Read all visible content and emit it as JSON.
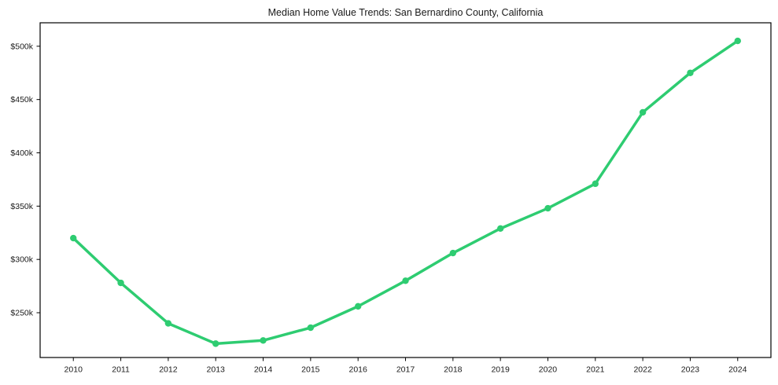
{
  "title": "Median Home Value Trends: San Bernardino County, California",
  "colors": {
    "line": "#2ecc71",
    "text": "#1a1a1a",
    "spine": "#000000",
    "background": "#ffffff"
  },
  "chart_data": {
    "type": "line",
    "title": "Median Home Value Trends: San Bernardino County, California",
    "series_name": "Median Home Value",
    "x": [
      2010,
      2011,
      2012,
      2013,
      2014,
      2015,
      2016,
      2017,
      2018,
      2019,
      2020,
      2021,
      2022,
      2023,
      2024
    ],
    "xtick_labels": [
      "2010",
      "2011",
      "2012",
      "2013",
      "2014",
      "2015",
      "2016",
      "2017",
      "2018",
      "2019",
      "2020",
      "2021",
      "2022",
      "2023",
      "2024"
    ],
    "values": [
      320000,
      278000,
      240000,
      221000,
      224000,
      236000,
      256000,
      280000,
      306000,
      329000,
      348000,
      371000,
      438000,
      475000,
      505000
    ],
    "xlabel": "",
    "ylabel": "",
    "xlim": [
      2009.3,
      2024.7
    ],
    "ylim": [
      208000,
      522000
    ],
    "yticks": [
      250000,
      300000,
      350000,
      400000,
      450000,
      500000
    ],
    "ytick_labels": [
      "$250k",
      "$300k",
      "$350k",
      "$400k",
      "$450k",
      "$500k"
    ],
    "grid": false,
    "legend": false,
    "marker": "circle",
    "line_color": "#2ecc71"
  }
}
